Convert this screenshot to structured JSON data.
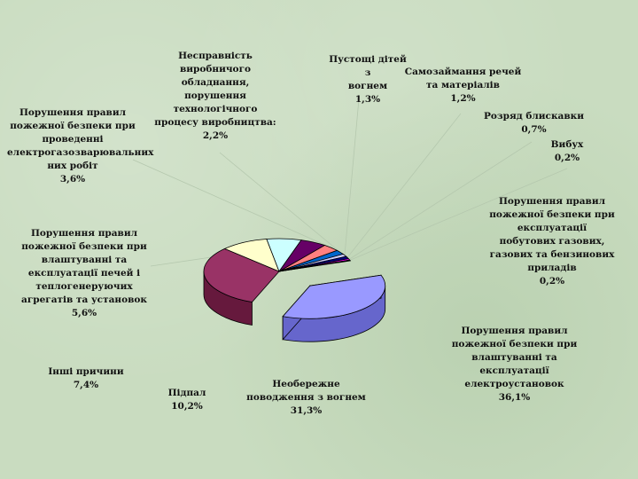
{
  "chart_data": {
    "type": "pie",
    "title": "",
    "slices": [
      {
        "label": "Порушення правил\nпожежної безпеки при\nвлаштуванні та\nексплуатації\nелектроустановок",
        "value": 36.1,
        "value_text": "36,1%",
        "color": "#9999ff",
        "side": "#6666cc"
      },
      {
        "label": "Необережне\nповодження з вогнем",
        "value": 31.3,
        "value_text": "31,3%",
        "color": "#993366",
        "side": "#66193d"
      },
      {
        "label": "Підпал",
        "value": 10.2,
        "value_text": "10,2%",
        "color": "#ffffcc",
        "side": "#999966"
      },
      {
        "label": "Інші причини",
        "value": 7.4,
        "value_text": "7,4%",
        "color": "#ccffff",
        "side": "#66aaaa"
      },
      {
        "label": "Порушення правил\nпожежної безпеки при\nвлаштуванні та\nексплуатації печей і\nтеплогенеруючих\nагрегатів та установок",
        "value": 5.6,
        "value_text": "5,6%",
        "color": "#660066",
        "side": "#330033"
      },
      {
        "label": "Порушення правил\nпожежної безпеки при\nпроведенні\nелектрогазозварювальних робіт",
        "value": 3.6,
        "value_text": "3,6%",
        "color": "#ff8080",
        "side": "#aa4444"
      },
      {
        "label": "Несправність\nвиробничого\nобладнання,\nпорушення\nтехнологічного\nпроцесу виробництва:",
        "value": 2.2,
        "value_text": "2,2%",
        "color": "#0066cc",
        "side": "#003366"
      },
      {
        "label": "Пустощі дітей з\nвогнем",
        "value": 1.3,
        "value_text": "1,3%",
        "color": "#ccccff",
        "side": "#8888bb"
      },
      {
        "label": "Самозаймання речей\nта матеріалів",
        "value": 1.2,
        "value_text": "1,2%",
        "color": "#000080",
        "side": "#000040"
      },
      {
        "label": "Розряд блискавки",
        "value": 0.7,
        "value_text": "0,7%",
        "color": "#ff00ff",
        "side": "#990099"
      },
      {
        "label": "Вибух",
        "value": 0.2,
        "value_text": "0,2%",
        "color": "#ffff00",
        "side": "#999900"
      },
      {
        "label": "Порушення правил\nпожежної безпеки при\nексплуатації\nпобутових газових,\nгазових та бензинових\nприладів",
        "value": 0.2,
        "value_text": "0,2%",
        "color": "#00ffff",
        "side": "#009999"
      }
    ]
  },
  "labels": {
    "electro": "Порушення правил\nпожежної безпеки при\nвлаштуванні та\nексплуатації\nелектроустановок\n36,1%",
    "careless": "Необережне\nповодження з вогнем\n31,3%",
    "arson": "Підпал\n10,2%",
    "other": "Інші причини\n7,4%",
    "stoves": "Порушення правил\nпожежної безпеки при\nвлаштуванні та\nексплуатації печей і\nтеплогенеруючих\nагрегатів та установок\n5,6%",
    "welding": "Порушення правил\nпожежної безпеки при\nпроведенні\nелектрогазозварювальних\nних робіт\n3,6%",
    "equipment": "Несправність\nвиробничого\nобладнання,\nпорушення\nтехнологічного\nпроцесу виробництва:\n2,2%",
    "children": "Пустощі дітей з\nвогнем\n1,3%",
    "selfignite": "Самозаймання речей\nта матеріалів\n1,2%",
    "lightning": "Розряд блискавки\n0,7%",
    "explosion": "Вибух\n0,2%",
    "gas": "Порушення правил\nпожежної безпеки при\nексплуатації\nпобутових газових,\nгазових та бензинових\nприладів\n0,2%"
  }
}
